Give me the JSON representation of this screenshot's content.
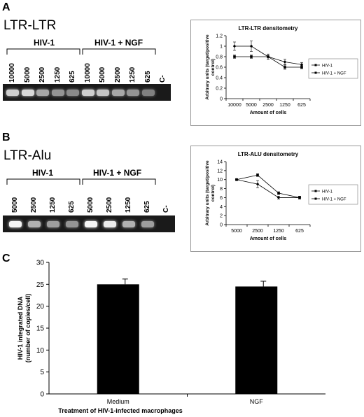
{
  "panels": {
    "a": {
      "letter": "A",
      "title": "LTR-LTR",
      "group_labels": [
        "HIV-1",
        "HIV-1 + NGF"
      ],
      "lanes": [
        "10000",
        "5000",
        "2500",
        "1250",
        "625",
        "10000",
        "5000",
        "2500",
        "1250",
        "625",
        "C-"
      ],
      "band_intensity": [
        0.75,
        0.8,
        0.55,
        0.45,
        0.4,
        0.75,
        0.7,
        0.55,
        0.45,
        0.35,
        0.0
      ]
    },
    "b": {
      "letter": "B",
      "title": "LTR-Alu",
      "group_labels": [
        "HIV-1",
        "HIV-1 + NGF"
      ],
      "lanes": [
        "5000",
        "2500",
        "1250",
        "625",
        "5000",
        "2500",
        "1250",
        "625",
        "C-"
      ],
      "band_intensity": [
        0.95,
        0.6,
        0.5,
        0.45,
        0.95,
        0.9,
        0.6,
        0.5,
        0.0
      ]
    },
    "c": {
      "letter": "C"
    }
  },
  "chart_data": [
    {
      "type": "line",
      "title": "LTR-LTR densitometry",
      "xlabel": "Amount of cells",
      "ylabel": "Arbitrary units (target/positive control)",
      "categories": [
        "10000",
        "5000",
        "2500",
        "1250",
        "625"
      ],
      "ylim": [
        0,
        1.2
      ],
      "yticks": [
        "0",
        "0.2",
        "0.4",
        "0.6",
        "0.8",
        "1",
        "1.2"
      ],
      "series": [
        {
          "name": "HIV-1",
          "values": [
            1.0,
            1.0,
            0.8,
            0.7,
            0.65
          ],
          "errors": [
            0.08,
            0.1,
            0.05,
            0.05,
            0.04
          ]
        },
        {
          "name": "HIV-1 + NGF",
          "values": [
            0.8,
            0.8,
            0.8,
            0.6,
            0.6
          ],
          "errors": [
            0.03,
            0.03,
            0.05,
            0.04,
            0.03
          ]
        }
      ],
      "legend": "right"
    },
    {
      "type": "line",
      "title": "LTR-ALU densitometry",
      "xlabel": "Amount of cells",
      "ylabel": "Arbitrary units (target/positive control)",
      "categories": [
        "5000",
        "2500",
        "1250",
        "625"
      ],
      "ylim": [
        0,
        14
      ],
      "yticks": [
        "0",
        "2",
        "4",
        "6",
        "8",
        "10",
        "12",
        "14"
      ],
      "series": [
        {
          "name": "HIV-1",
          "values": [
            10,
            9,
            6,
            6
          ],
          "errors": [
            0.2,
            0.8,
            0.3,
            0.3
          ]
        },
        {
          "name": "HIV-1 + NGF",
          "values": [
            10,
            11,
            7,
            6
          ],
          "errors": [
            0.2,
            0.3,
            0.3,
            0.3
          ]
        }
      ],
      "legend": "right"
    },
    {
      "type": "bar",
      "xlabel": "Treatment of HIV-1-infected macrophages",
      "ylabel": "HIV-1 integrated DNA (number of copies/cell)",
      "categories": [
        "Medium",
        "NGF"
      ],
      "values": [
        25,
        24.5
      ],
      "errors": [
        1.2,
        1.2
      ],
      "ylim": [
        0,
        30
      ],
      "yticks": [
        "0",
        "5",
        "10",
        "15",
        "20",
        "25",
        "30"
      ]
    }
  ]
}
